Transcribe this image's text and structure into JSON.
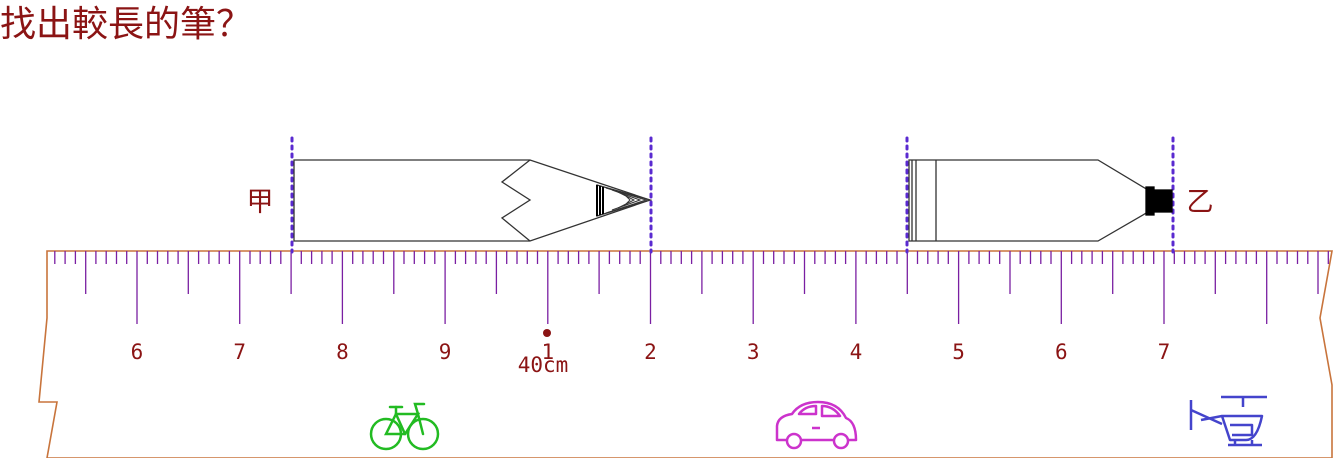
{
  "question": "找出較長的筆？",
  "pens": [
    {
      "label": "甲",
      "type": "pencil"
    },
    {
      "label": "乙",
      "type": "marker"
    }
  ],
  "ruler": {
    "numbers": [
      "6",
      "7",
      "8",
      "9",
      "1",
      "2",
      "3",
      "4",
      "5",
      "6",
      "7"
    ],
    "center_mark": "40cm",
    "colors": {
      "ruler_edge": "#c8743c",
      "ticks": "#7a1fa2",
      "numbers": "#8b1414",
      "guides": "#5a2ad0"
    }
  },
  "icons": [
    {
      "name": "bicycle-icon",
      "color": "#22bb22"
    },
    {
      "name": "car-icon",
      "color": "#cc33cc"
    },
    {
      "name": "helicopter-icon",
      "color": "#4444cc"
    }
  ]
}
